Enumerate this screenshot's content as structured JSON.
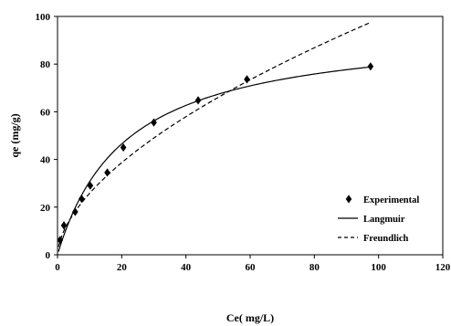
{
  "chart_data": {
    "type": "scatter",
    "xlabel": "Ce( mg/L)",
    "ylabel": "qe (mg/g)",
    "xlim": [
      0,
      120
    ],
    "ylim": [
      0,
      100
    ],
    "x_ticks": [
      "0",
      "20",
      "40",
      "60",
      "80",
      "100",
      "120"
    ],
    "y_ticks": [
      "0",
      "20",
      "40",
      "60",
      "80",
      "100"
    ],
    "grid": false,
    "legend_position": "right",
    "series": [
      {
        "name": "Experimental",
        "style": "diamond-markers",
        "color": "#000000",
        "x": [
          0.8,
          2.0,
          5.5,
          7.5,
          10.2,
          15.5,
          20.5,
          30.0,
          43.8,
          59.0,
          97.5
        ],
        "y": [
          6.2,
          12.3,
          18.0,
          23.5,
          29.0,
          34.5,
          45.0,
          55.5,
          64.8,
          73.6,
          79.0
        ]
      },
      {
        "name": "Langmuir",
        "style": "solid-line",
        "color": "#000000",
        "qmax": 96.0,
        "KL": 0.047,
        "x_range": [
          0.3,
          97.5
        ]
      },
      {
        "name": "Freundlich",
        "style": "dashed-line",
        "color": "#000000",
        "KF": 6.72,
        "n_inv": 0.584,
        "x_range": [
          0.3,
          97.5
        ]
      }
    ]
  }
}
